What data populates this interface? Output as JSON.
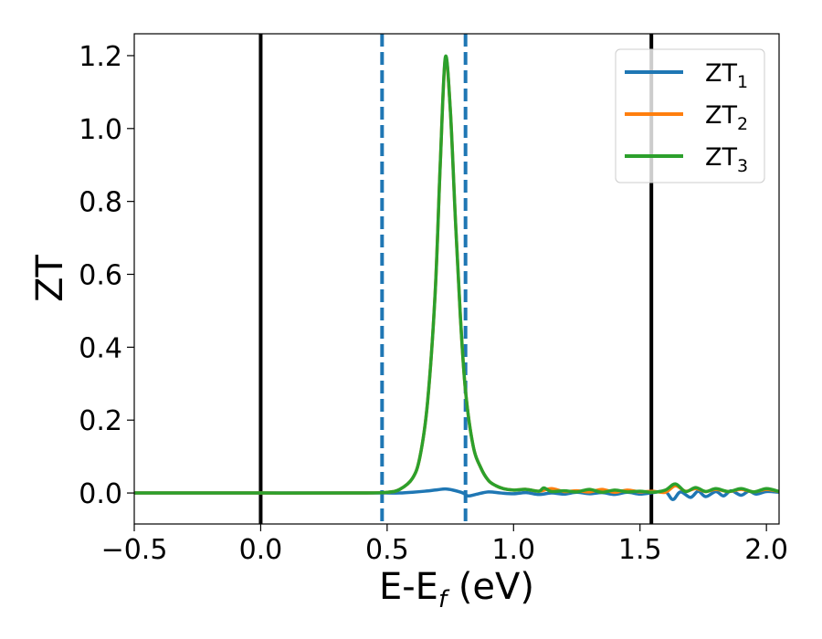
{
  "chart_data": {
    "type": "line",
    "title": "",
    "xlabel": {
      "main": "E-E",
      "sub": "f",
      "suffix": " (eV)"
    },
    "ylabel": "ZT",
    "xlim": [
      -0.5,
      2.05
    ],
    "ylim": [
      -0.085,
      1.26
    ],
    "xticks": [
      -0.5,
      0.0,
      0.5,
      1.0,
      1.5,
      2.0
    ],
    "xtick_labels": [
      "−0.5",
      "0.0",
      "0.5",
      "1.0",
      "1.5",
      "2.0"
    ],
    "yticks": [
      0.0,
      0.2,
      0.4,
      0.6,
      0.8,
      1.0,
      1.2
    ],
    "ytick_labels": [
      "0.0",
      "0.2",
      "0.4",
      "0.6",
      "0.8",
      "1.0",
      "1.2"
    ],
    "grid": false,
    "legend_position": "top-right",
    "vlines": [
      {
        "x": 0.0,
        "style": "solid",
        "color": "#000000"
      },
      {
        "x": 1.545,
        "style": "solid",
        "color": "#000000"
      },
      {
        "x": 0.48,
        "style": "dashed",
        "color": "#1f77b4"
      },
      {
        "x": 0.81,
        "style": "dashed",
        "color": "#1f77b4"
      }
    ],
    "series": [
      {
        "name": "ZT",
        "name_sub": "1",
        "color": "#1f77b4",
        "x": [
          -0.5,
          0.0,
          0.4,
          0.5,
          0.55,
          0.6,
          0.65,
          0.7,
          0.73,
          0.76,
          0.8,
          0.82,
          0.85,
          0.9,
          0.95,
          1.0,
          1.05,
          1.1,
          1.15,
          1.2,
          1.25,
          1.3,
          1.35,
          1.4,
          1.45,
          1.5,
          1.55,
          1.6,
          1.63,
          1.66,
          1.7,
          1.73,
          1.76,
          1.8,
          1.83,
          1.86,
          1.9,
          1.93,
          1.96,
          2.0,
          2.05
        ],
        "y": [
          0.0,
          0.0,
          0.0,
          0.0,
          0.0,
          0.002,
          0.005,
          0.009,
          0.011,
          0.008,
          0.0,
          -0.008,
          -0.004,
          0.003,
          0.0,
          -0.002,
          0.001,
          -0.004,
          0.0,
          -0.003,
          0.002,
          -0.002,
          0.001,
          -0.004,
          0.002,
          -0.003,
          0.001,
          0.004,
          -0.018,
          0.003,
          -0.012,
          0.005,
          -0.01,
          0.004,
          -0.008,
          0.006,
          -0.006,
          0.005,
          -0.003,
          0.004,
          0.002
        ]
      },
      {
        "name": "ZT",
        "name_sub": "2",
        "color": "#ff7f0e",
        "x": [
          -0.5,
          0.0,
          0.4,
          0.5,
          0.55,
          0.6,
          0.63,
          0.66,
          0.69,
          0.71,
          0.73,
          0.75,
          0.77,
          0.79,
          0.81,
          0.84,
          0.87,
          0.9,
          0.93,
          0.96,
          1.0,
          1.05,
          1.1,
          1.15,
          1.2,
          1.25,
          1.3,
          1.35,
          1.4,
          1.45,
          1.5,
          1.55,
          1.6,
          1.64,
          1.68,
          1.72,
          1.76,
          1.8,
          1.85,
          1.9,
          1.95,
          2.0,
          2.05
        ],
        "y": [
          0.0,
          0.0,
          0.0,
          0.002,
          0.01,
          0.04,
          0.1,
          0.25,
          0.55,
          0.9,
          1.19,
          1.05,
          0.75,
          0.48,
          0.28,
          0.13,
          0.07,
          0.035,
          0.02,
          0.012,
          0.008,
          0.01,
          0.005,
          0.012,
          0.004,
          0.006,
          0.003,
          0.01,
          0.002,
          0.008,
          0.003,
          0.005,
          0.002,
          0.02,
          0.005,
          0.012,
          0.004,
          0.01,
          0.004,
          0.01,
          0.003,
          0.01,
          0.004
        ]
      },
      {
        "name": "ZT",
        "name_sub": "3",
        "color": "#2ca02c",
        "x": [
          -0.5,
          0.0,
          0.4,
          0.5,
          0.55,
          0.6,
          0.63,
          0.66,
          0.69,
          0.71,
          0.73,
          0.75,
          0.77,
          0.79,
          0.81,
          0.84,
          0.87,
          0.9,
          0.93,
          0.96,
          1.0,
          1.05,
          1.1,
          1.12,
          1.15,
          1.2,
          1.25,
          1.3,
          1.35,
          1.4,
          1.45,
          1.5,
          1.55,
          1.6,
          1.64,
          1.68,
          1.72,
          1.76,
          1.8,
          1.85,
          1.9,
          1.95,
          2.0,
          2.05
        ],
        "y": [
          0.0,
          0.0,
          0.0,
          0.002,
          0.01,
          0.04,
          0.1,
          0.25,
          0.55,
          0.9,
          1.195,
          1.05,
          0.75,
          0.48,
          0.28,
          0.13,
          0.07,
          0.035,
          0.02,
          0.012,
          0.008,
          0.01,
          0.005,
          0.014,
          0.004,
          0.006,
          0.003,
          0.01,
          0.002,
          0.008,
          0.003,
          0.005,
          0.002,
          0.008,
          0.025,
          0.004,
          0.015,
          0.004,
          0.012,
          0.004,
          0.012,
          0.003,
          0.012,
          0.004
        ]
      }
    ]
  }
}
